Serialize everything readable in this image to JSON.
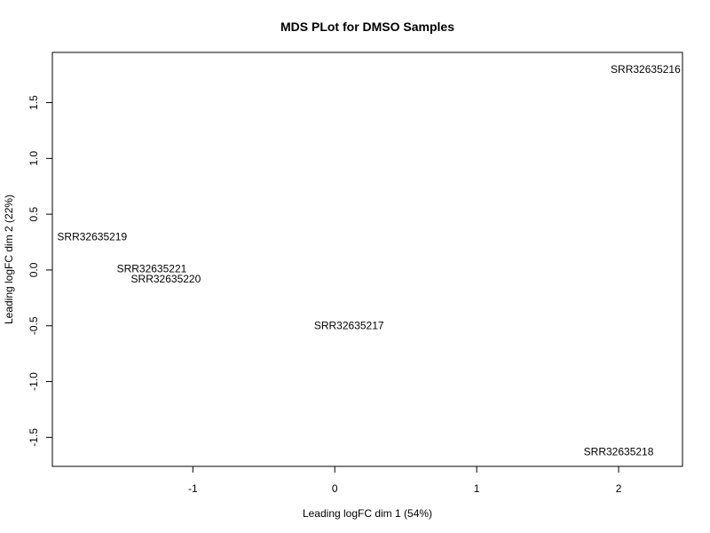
{
  "chart_data": {
    "type": "scatter",
    "title": "MDS PLot for DMSO Samples",
    "xlabel": "Leading logFC dim 1 (54%)",
    "ylabel": "Leading logFC dim 2 (22%)",
    "xlim": [
      -1.99,
      2.45
    ],
    "ylim": [
      -1.76,
      1.95
    ],
    "xticks": [
      -1,
      0,
      1,
      2
    ],
    "xtick_labels": [
      "-1",
      "0",
      "1",
      "2"
    ],
    "yticks": [
      -1.5,
      -1.0,
      -0.5,
      0.0,
      0.5,
      1.0,
      1.5
    ],
    "ytick_labels": [
      "-1.5",
      "-1.0",
      "-0.5",
      "0.0",
      "0.5",
      "1.0",
      "1.5"
    ],
    "grid": false,
    "points": [
      {
        "label": "SRR32635216",
        "x": 2.19,
        "y": 1.8
      },
      {
        "label": "SRR32635219",
        "x": -1.71,
        "y": 0.3
      },
      {
        "label": "SRR32635221",
        "x": -1.29,
        "y": 0.01
      },
      {
        "label": "SRR32635220",
        "x": -1.19,
        "y": -0.08
      },
      {
        "label": "SRR32635217",
        "x": 0.1,
        "y": -0.5
      },
      {
        "label": "SRR32635218",
        "x": 2.0,
        "y": -1.63
      }
    ]
  }
}
